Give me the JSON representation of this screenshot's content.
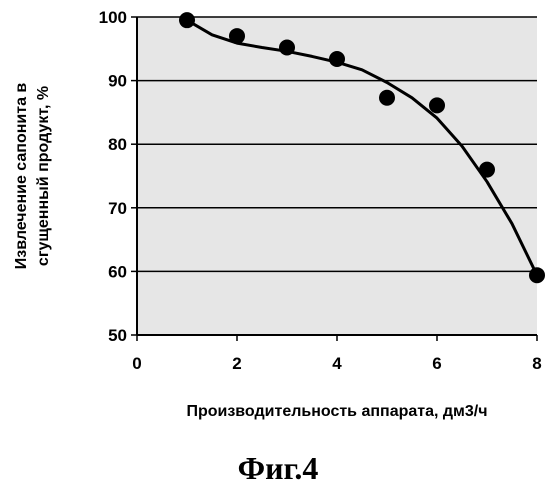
{
  "chart_data": {
    "type": "scatter",
    "xlabel": "Производительность аппарата, дм3/ч",
    "ylabel_lines": [
      "Извлечение сапонита в",
      "сгущенный продукт, %"
    ],
    "xlim": [
      0,
      8
    ],
    "ylim": [
      50,
      100
    ],
    "x_ticks": [
      0,
      2,
      4,
      6,
      8
    ],
    "y_ticks": [
      50,
      60,
      70,
      80,
      90,
      100
    ],
    "grid": "horizontal",
    "legend": "none",
    "plot_background": "#e6e6e6",
    "series": [
      {
        "type": "scatter",
        "x": [
          1,
          2,
          3,
          4,
          5,
          6,
          7,
          8
        ],
        "y": [
          99.5,
          97,
          95.2,
          93.4,
          87.3,
          86.1,
          76,
          59.4
        ]
      },
      {
        "type": "line",
        "x": [
          1,
          1.5,
          2,
          2.5,
          3,
          3.5,
          4,
          4.5,
          5,
          5.5,
          6,
          6.5,
          7,
          7.5,
          8
        ],
        "y": [
          99.5,
          97.2,
          95.9,
          95.2,
          94.6,
          93.8,
          92.9,
          91.7,
          89.7,
          87.3,
          84.1,
          79.7,
          74.1,
          67.5,
          59.4
        ]
      }
    ]
  },
  "caption": "Фиг.4"
}
